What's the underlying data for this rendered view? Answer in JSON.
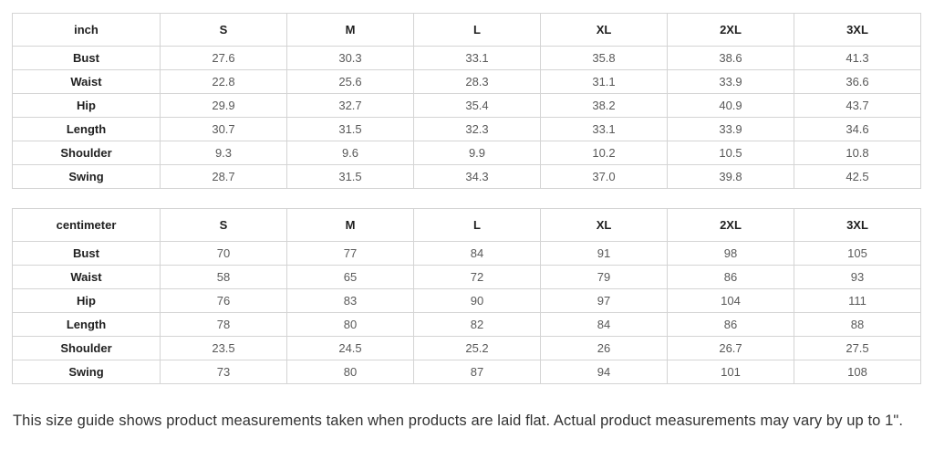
{
  "tables": [
    {
      "unit_header": "inch",
      "size_headers": [
        "S",
        "M",
        "L",
        "XL",
        "2XL",
        "3XL"
      ],
      "rows": [
        {
          "label": "Bust",
          "values": [
            "27.6",
            "30.3",
            "33.1",
            "35.8",
            "38.6",
            "41.3"
          ]
        },
        {
          "label": "Waist",
          "values": [
            "22.8",
            "25.6",
            "28.3",
            "31.1",
            "33.9",
            "36.6"
          ]
        },
        {
          "label": "Hip",
          "values": [
            "29.9",
            "32.7",
            "35.4",
            "38.2",
            "40.9",
            "43.7"
          ]
        },
        {
          "label": "Length",
          "values": [
            "30.7",
            "31.5",
            "32.3",
            "33.1",
            "33.9",
            "34.6"
          ]
        },
        {
          "label": "Shoulder",
          "values": [
            "9.3",
            "9.6",
            "9.9",
            "10.2",
            "10.5",
            "10.8"
          ]
        },
        {
          "label": "Swing",
          "values": [
            "28.7",
            "31.5",
            "34.3",
            "37.0",
            "39.8",
            "42.5"
          ]
        }
      ]
    },
    {
      "unit_header": "centimeter",
      "size_headers": [
        "S",
        "M",
        "L",
        "XL",
        "2XL",
        "3XL"
      ],
      "rows": [
        {
          "label": "Bust",
          "values": [
            "70",
            "77",
            "84",
            "91",
            "98",
            "105"
          ]
        },
        {
          "label": "Waist",
          "values": [
            "58",
            "65",
            "72",
            "79",
            "86",
            "93"
          ]
        },
        {
          "label": "Hip",
          "values": [
            "76",
            "83",
            "90",
            "97",
            "104",
            "111"
          ]
        },
        {
          "label": "Length",
          "values": [
            "78",
            "80",
            "82",
            "84",
            "86",
            "88"
          ]
        },
        {
          "label": "Shoulder",
          "values": [
            "23.5",
            "24.5",
            "25.2",
            "26",
            "26.7",
            "27.5"
          ]
        },
        {
          "label": "Swing",
          "values": [
            "73",
            "80",
            "87",
            "94",
            "101",
            "108"
          ]
        }
      ]
    }
  ],
  "note": "This size guide shows product measurements taken when products are laid flat. Actual product measurements may vary by up to 1\"."
}
